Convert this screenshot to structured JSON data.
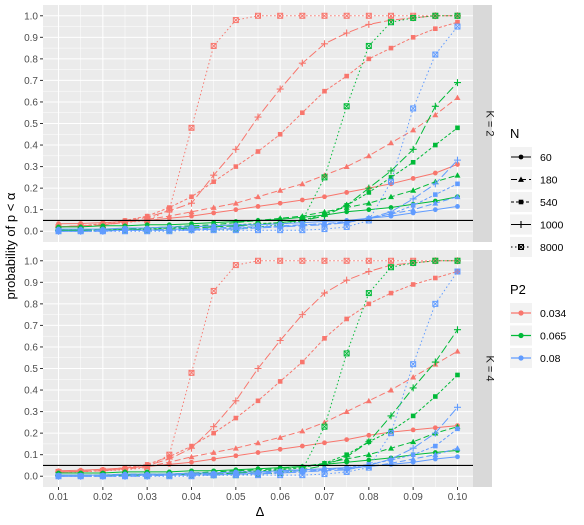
{
  "chart_data": {
    "type": "line",
    "xlabel": "Δ",
    "ylabel": "probability of p < α",
    "x": [
      0.01,
      0.015,
      0.02,
      0.025,
      0.03,
      0.035,
      0.04,
      0.045,
      0.05,
      0.055,
      0.06,
      0.065,
      0.07,
      0.075,
      0.08,
      0.085,
      0.09,
      0.095,
      0.1
    ],
    "x_ticks": [
      "0.01",
      "0.02",
      "0.03",
      "0.04",
      "0.05",
      "0.06",
      "0.07",
      "0.08",
      "0.09",
      "0.10"
    ],
    "x_tick_values": [
      0.01,
      0.02,
      0.03,
      0.04,
      0.05,
      0.06,
      0.07,
      0.08,
      0.09,
      0.1
    ],
    "y_ticks": [
      "0.0",
      "0.1",
      "0.2",
      "0.3",
      "0.4",
      "0.5",
      "0.6",
      "0.7",
      "0.8",
      "0.9",
      "1.0"
    ],
    "y_tick_values": [
      0,
      0.1,
      0.2,
      0.3,
      0.4,
      0.5,
      0.6,
      0.7,
      0.8,
      0.9,
      1.0
    ],
    "xlim": [
      0.0065,
      0.1035
    ],
    "ylim": [
      -0.05,
      1.05
    ],
    "reference_line": 0.05,
    "grid": true,
    "legend_position": "right",
    "legends": {
      "shape": {
        "title": "N",
        "entries": [
          "60",
          "180",
          "540",
          "1000",
          "8000"
        ]
      },
      "color": {
        "title": "P2",
        "entries": [
          "0.034",
          "0.065",
          "0.08"
        ]
      }
    },
    "colors": {
      "0.034": "#F8766D",
      "0.065": "#00BA38",
      "0.08": "#619CFF"
    },
    "panels": [
      {
        "label": "K = 2",
        "series": [
          {
            "p2": "0.034",
            "n": "60",
            "values": [
              0.035,
              0.036,
              0.04,
              0.045,
              0.05,
              0.06,
              0.07,
              0.085,
              0.1,
              0.115,
              0.13,
              0.145,
              0.16,
              0.18,
              0.2,
              0.22,
              0.245,
              0.27,
              0.31
            ]
          },
          {
            "p2": "0.034",
            "n": "180",
            "values": [
              0.02,
              0.025,
              0.03,
              0.04,
              0.055,
              0.07,
              0.09,
              0.11,
              0.13,
              0.16,
              0.19,
              0.22,
              0.26,
              0.3,
              0.35,
              0.41,
              0.47,
              0.54,
              0.62
            ]
          },
          {
            "p2": "0.034",
            "n": "540",
            "values": [
              0.02,
              0.025,
              0.035,
              0.05,
              0.07,
              0.11,
              0.16,
              0.23,
              0.3,
              0.37,
              0.45,
              0.55,
              0.65,
              0.72,
              0.8,
              0.85,
              0.9,
              0.94,
              0.97
            ]
          },
          {
            "p2": "0.034",
            "n": "1000",
            "values": [
              0.02,
              0.025,
              0.03,
              0.045,
              0.065,
              0.095,
              0.13,
              0.26,
              0.38,
              0.53,
              0.66,
              0.78,
              0.87,
              0.92,
              0.96,
              0.98,
              0.99,
              1.0,
              1.0
            ]
          },
          {
            "p2": "0.034",
            "n": "8000",
            "values": [
              0.02,
              0.025,
              0.03,
              0.04,
              0.05,
              0.1,
              0.48,
              0.86,
              0.98,
              1.0,
              1.0,
              1.0,
              1.0,
              1.0,
              1.0,
              1.0,
              1.0,
              1.0,
              1.0
            ]
          },
          {
            "p2": "0.065",
            "n": "60",
            "values": [
              0.02,
              0.02,
              0.025,
              0.025,
              0.03,
              0.03,
              0.035,
              0.04,
              0.045,
              0.05,
              0.055,
              0.065,
              0.075,
              0.09,
              0.1,
              0.11,
              0.125,
              0.14,
              0.16
            ]
          },
          {
            "p2": "0.065",
            "n": "180",
            "values": [
              0.005,
              0.005,
              0.01,
              0.01,
              0.015,
              0.02,
              0.025,
              0.03,
              0.04,
              0.05,
              0.06,
              0.07,
              0.09,
              0.11,
              0.13,
              0.16,
              0.19,
              0.23,
              0.26
            ]
          },
          {
            "p2": "0.065",
            "n": "540",
            "values": [
              0.005,
              0.005,
              0.005,
              0.01,
              0.01,
              0.015,
              0.02,
              0.025,
              0.03,
              0.035,
              0.04,
              0.05,
              0.08,
              0.12,
              0.18,
              0.25,
              0.32,
              0.4,
              0.48
            ]
          },
          {
            "p2": "0.065",
            "n": "1000",
            "values": [
              0.005,
              0.005,
              0.005,
              0.005,
              0.01,
              0.01,
              0.015,
              0.02,
              0.025,
              0.03,
              0.04,
              0.05,
              0.07,
              0.12,
              0.2,
              0.28,
              0.38,
              0.58,
              0.69
            ]
          },
          {
            "p2": "0.065",
            "n": "8000",
            "values": [
              0.005,
              0.005,
              0.005,
              0.005,
              0.005,
              0.005,
              0.01,
              0.01,
              0.01,
              0.02,
              0.03,
              0.05,
              0.25,
              0.58,
              0.86,
              0.97,
              0.99,
              1.0,
              1.0
            ]
          },
          {
            "p2": "0.08",
            "n": "60",
            "values": [
              0.01,
              0.01,
              0.01,
              0.015,
              0.015,
              0.02,
              0.02,
              0.025,
              0.03,
              0.03,
              0.035,
              0.04,
              0.045,
              0.05,
              0.06,
              0.07,
              0.085,
              0.1,
              0.115
            ]
          },
          {
            "p2": "0.08",
            "n": "180",
            "values": [
              0.0,
              0.0,
              0.005,
              0.005,
              0.005,
              0.01,
              0.01,
              0.015,
              0.02,
              0.02,
              0.025,
              0.03,
              0.035,
              0.045,
              0.06,
              0.08,
              0.1,
              0.13,
              0.16
            ]
          },
          {
            "p2": "0.08",
            "n": "540",
            "values": [
              0.0,
              0.0,
              0.0,
              0.005,
              0.005,
              0.005,
              0.01,
              0.01,
              0.015,
              0.02,
              0.02,
              0.03,
              0.035,
              0.04,
              0.06,
              0.08,
              0.12,
              0.17,
              0.22
            ]
          },
          {
            "p2": "0.08",
            "n": "1000",
            "values": [
              0.0,
              0.0,
              0.0,
              0.005,
              0.005,
              0.005,
              0.005,
              0.01,
              0.01,
              0.015,
              0.02,
              0.025,
              0.03,
              0.04,
              0.06,
              0.09,
              0.15,
              0.22,
              0.33
            ]
          },
          {
            "p2": "0.08",
            "n": "8000",
            "values": [
              0.0,
              0.0,
              0.0,
              0.0,
              0.0,
              0.0,
              0.005,
              0.005,
              0.005,
              0.005,
              0.005,
              0.005,
              0.01,
              0.02,
              0.05,
              0.23,
              0.57,
              0.82,
              0.95
            ]
          }
        ]
      },
      {
        "label": "K = 4",
        "series": [
          {
            "p2": "0.034",
            "n": "60",
            "values": [
              0.025,
              0.028,
              0.032,
              0.038,
              0.045,
              0.055,
              0.065,
              0.08,
              0.095,
              0.11,
              0.125,
              0.14,
              0.155,
              0.17,
              0.19,
              0.205,
              0.215,
              0.225,
              0.235
            ]
          },
          {
            "p2": "0.034",
            "n": "180",
            "values": [
              0.02,
              0.022,
              0.026,
              0.032,
              0.045,
              0.065,
              0.09,
              0.11,
              0.13,
              0.155,
              0.18,
              0.21,
              0.25,
              0.3,
              0.35,
              0.4,
              0.46,
              0.52,
              0.58
            ]
          },
          {
            "p2": "0.034",
            "n": "540",
            "values": [
              0.02,
              0.022,
              0.028,
              0.04,
              0.055,
              0.09,
              0.14,
              0.2,
              0.27,
              0.35,
              0.44,
              0.53,
              0.64,
              0.73,
              0.8,
              0.85,
              0.89,
              0.92,
              0.95
            ]
          },
          {
            "p2": "0.034",
            "n": "1000",
            "values": [
              0.02,
              0.022,
              0.026,
              0.035,
              0.05,
              0.08,
              0.13,
              0.23,
              0.35,
              0.5,
              0.63,
              0.75,
              0.85,
              0.91,
              0.95,
              0.98,
              0.99,
              1.0,
              1.0
            ]
          },
          {
            "p2": "0.034",
            "n": "8000",
            "values": [
              0.02,
              0.02,
              0.025,
              0.03,
              0.04,
              0.1,
              0.48,
              0.86,
              0.98,
              1.0,
              1.0,
              1.0,
              1.0,
              1.0,
              1.0,
              1.0,
              1.0,
              1.0,
              1.0
            ]
          },
          {
            "p2": "0.065",
            "n": "60",
            "values": [
              0.015,
              0.015,
              0.015,
              0.02,
              0.02,
              0.02,
              0.025,
              0.025,
              0.03,
              0.035,
              0.04,
              0.045,
              0.055,
              0.065,
              0.075,
              0.085,
              0.1,
              0.11,
              0.12
            ]
          },
          {
            "p2": "0.065",
            "n": "180",
            "values": [
              0.005,
              0.005,
              0.005,
              0.01,
              0.01,
              0.01,
              0.015,
              0.02,
              0.025,
              0.03,
              0.035,
              0.045,
              0.06,
              0.08,
              0.1,
              0.13,
              0.16,
              0.2,
              0.23
            ]
          },
          {
            "p2": "0.065",
            "n": "540",
            "values": [
              0.005,
              0.005,
              0.005,
              0.005,
              0.01,
              0.01,
              0.01,
              0.015,
              0.02,
              0.025,
              0.03,
              0.04,
              0.06,
              0.1,
              0.16,
              0.21,
              0.28,
              0.37,
              0.47
            ]
          },
          {
            "p2": "0.065",
            "n": "1000",
            "values": [
              0.005,
              0.005,
              0.005,
              0.005,
              0.005,
              0.005,
              0.01,
              0.01,
              0.015,
              0.02,
              0.025,
              0.03,
              0.05,
              0.09,
              0.16,
              0.28,
              0.41,
              0.53,
              0.68
            ]
          },
          {
            "p2": "0.065",
            "n": "8000",
            "values": [
              0.005,
              0.005,
              0.005,
              0.005,
              0.005,
              0.005,
              0.005,
              0.005,
              0.005,
              0.01,
              0.015,
              0.03,
              0.23,
              0.57,
              0.85,
              0.97,
              0.99,
              1.0,
              1.0
            ]
          },
          {
            "p2": "0.08",
            "n": "60",
            "values": [
              0.005,
              0.005,
              0.005,
              0.01,
              0.01,
              0.01,
              0.015,
              0.015,
              0.02,
              0.02,
              0.025,
              0.03,
              0.035,
              0.04,
              0.045,
              0.055,
              0.065,
              0.08,
              0.09
            ]
          },
          {
            "p2": "0.08",
            "n": "180",
            "values": [
              0.0,
              0.0,
              0.0,
              0.005,
              0.005,
              0.005,
              0.01,
              0.01,
              0.01,
              0.015,
              0.02,
              0.025,
              0.03,
              0.035,
              0.045,
              0.06,
              0.08,
              0.1,
              0.13
            ]
          },
          {
            "p2": "0.08",
            "n": "540",
            "values": [
              0.0,
              0.0,
              0.0,
              0.0,
              0.005,
              0.005,
              0.005,
              0.01,
              0.01,
              0.015,
              0.015,
              0.02,
              0.03,
              0.04,
              0.055,
              0.075,
              0.1,
              0.14,
              0.22
            ]
          },
          {
            "p2": "0.08",
            "n": "1000",
            "values": [
              0.0,
              0.0,
              0.0,
              0.0,
              0.0,
              0.005,
              0.005,
              0.005,
              0.01,
              0.01,
              0.015,
              0.02,
              0.025,
              0.03,
              0.05,
              0.08,
              0.13,
              0.2,
              0.32
            ]
          },
          {
            "p2": "0.08",
            "n": "8000",
            "values": [
              0.0,
              0.0,
              0.0,
              0.0,
              0.0,
              0.0,
              0.0,
              0.005,
              0.005,
              0.005,
              0.005,
              0.005,
              0.01,
              0.02,
              0.04,
              0.2,
              0.52,
              0.8,
              0.95
            ]
          }
        ]
      }
    ]
  }
}
